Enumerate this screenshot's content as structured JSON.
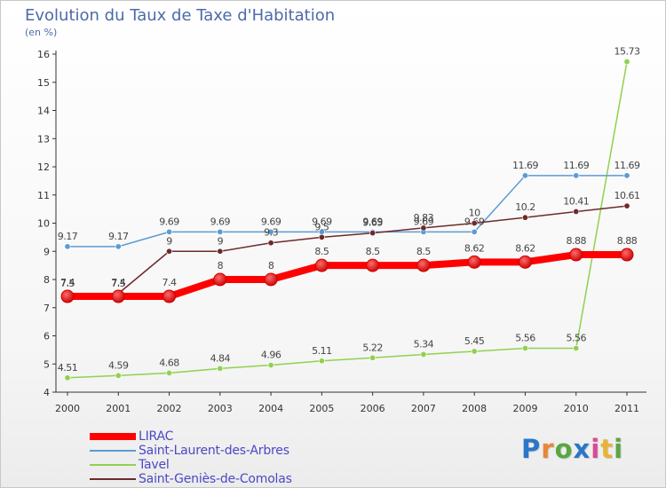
{
  "title": "Evolution du Taux de Taxe d'Habitation",
  "subtitle": "(en %)",
  "logo": {
    "text": "Proxiti",
    "colors": [
      "#2a76c9",
      "#e8863a",
      "#5aa640",
      "#2a76c9",
      "#d84b95",
      "#e8b23a",
      "#5aa640"
    ]
  },
  "chart_data": {
    "type": "line",
    "x": [
      "2000",
      "2001",
      "2002",
      "2003",
      "2004",
      "2005",
      "2006",
      "2007",
      "2008",
      "2009",
      "2010",
      "2011"
    ],
    "ylim": [
      4,
      16
    ],
    "yticks": [
      "4",
      "5",
      "6",
      "7",
      "8",
      "9",
      "10",
      "11",
      "12",
      "13",
      "14",
      "15",
      "16"
    ],
    "grid": false,
    "legend_position": "bottom-left",
    "series": [
      {
        "name": "LIRAC",
        "color": "#ff0000",
        "values": [
          7.4,
          7.4,
          7.4,
          8,
          8,
          8.5,
          8.5,
          8.5,
          8.62,
          8.62,
          8.88,
          8.88
        ],
        "labels": [
          "7.4",
          "7.4",
          "7.4",
          "8",
          "8",
          "8.5",
          "8.5",
          "8.5",
          "8.62",
          "8.62",
          "8.88",
          "8.88"
        ]
      },
      {
        "name": "Saint-Laurent-des-Arbres",
        "color": "#5b9bd5",
        "values": [
          9.17,
          9.17,
          9.69,
          9.69,
          9.69,
          9.69,
          9.69,
          9.69,
          9.69,
          11.69,
          11.69,
          11.69
        ],
        "labels": [
          "9.17",
          "9.17",
          "9.69",
          "9.69",
          "9.69",
          "9.69",
          "9.69",
          "9.69",
          "9.69",
          "11.69",
          "11.69",
          "11.69"
        ]
      },
      {
        "name": "Tavel",
        "color": "#92d050",
        "values": [
          4.51,
          4.59,
          4.68,
          4.84,
          4.96,
          5.11,
          5.22,
          5.34,
          5.45,
          5.56,
          5.56,
          15.73
        ],
        "labels": [
          "4.51",
          "4.59",
          "4.68",
          "4.84",
          "4.96",
          "5.11",
          "5.22",
          "5.34",
          "5.45",
          "5.56",
          "5.56",
          "15.73"
        ]
      },
      {
        "name": "Saint-Geniès-de-Comolas",
        "color": "#6e2a2a",
        "values": [
          7.5,
          7.5,
          9,
          9,
          9.3,
          9.5,
          9.65,
          9.83,
          10,
          10.2,
          10.41,
          10.61
        ],
        "labels": [
          "7.5",
          "7.5",
          "9",
          "9",
          "9.3",
          "9.5",
          "9.65",
          "9.83",
          "10",
          "10.2",
          "10.41",
          "10.61"
        ]
      }
    ]
  }
}
